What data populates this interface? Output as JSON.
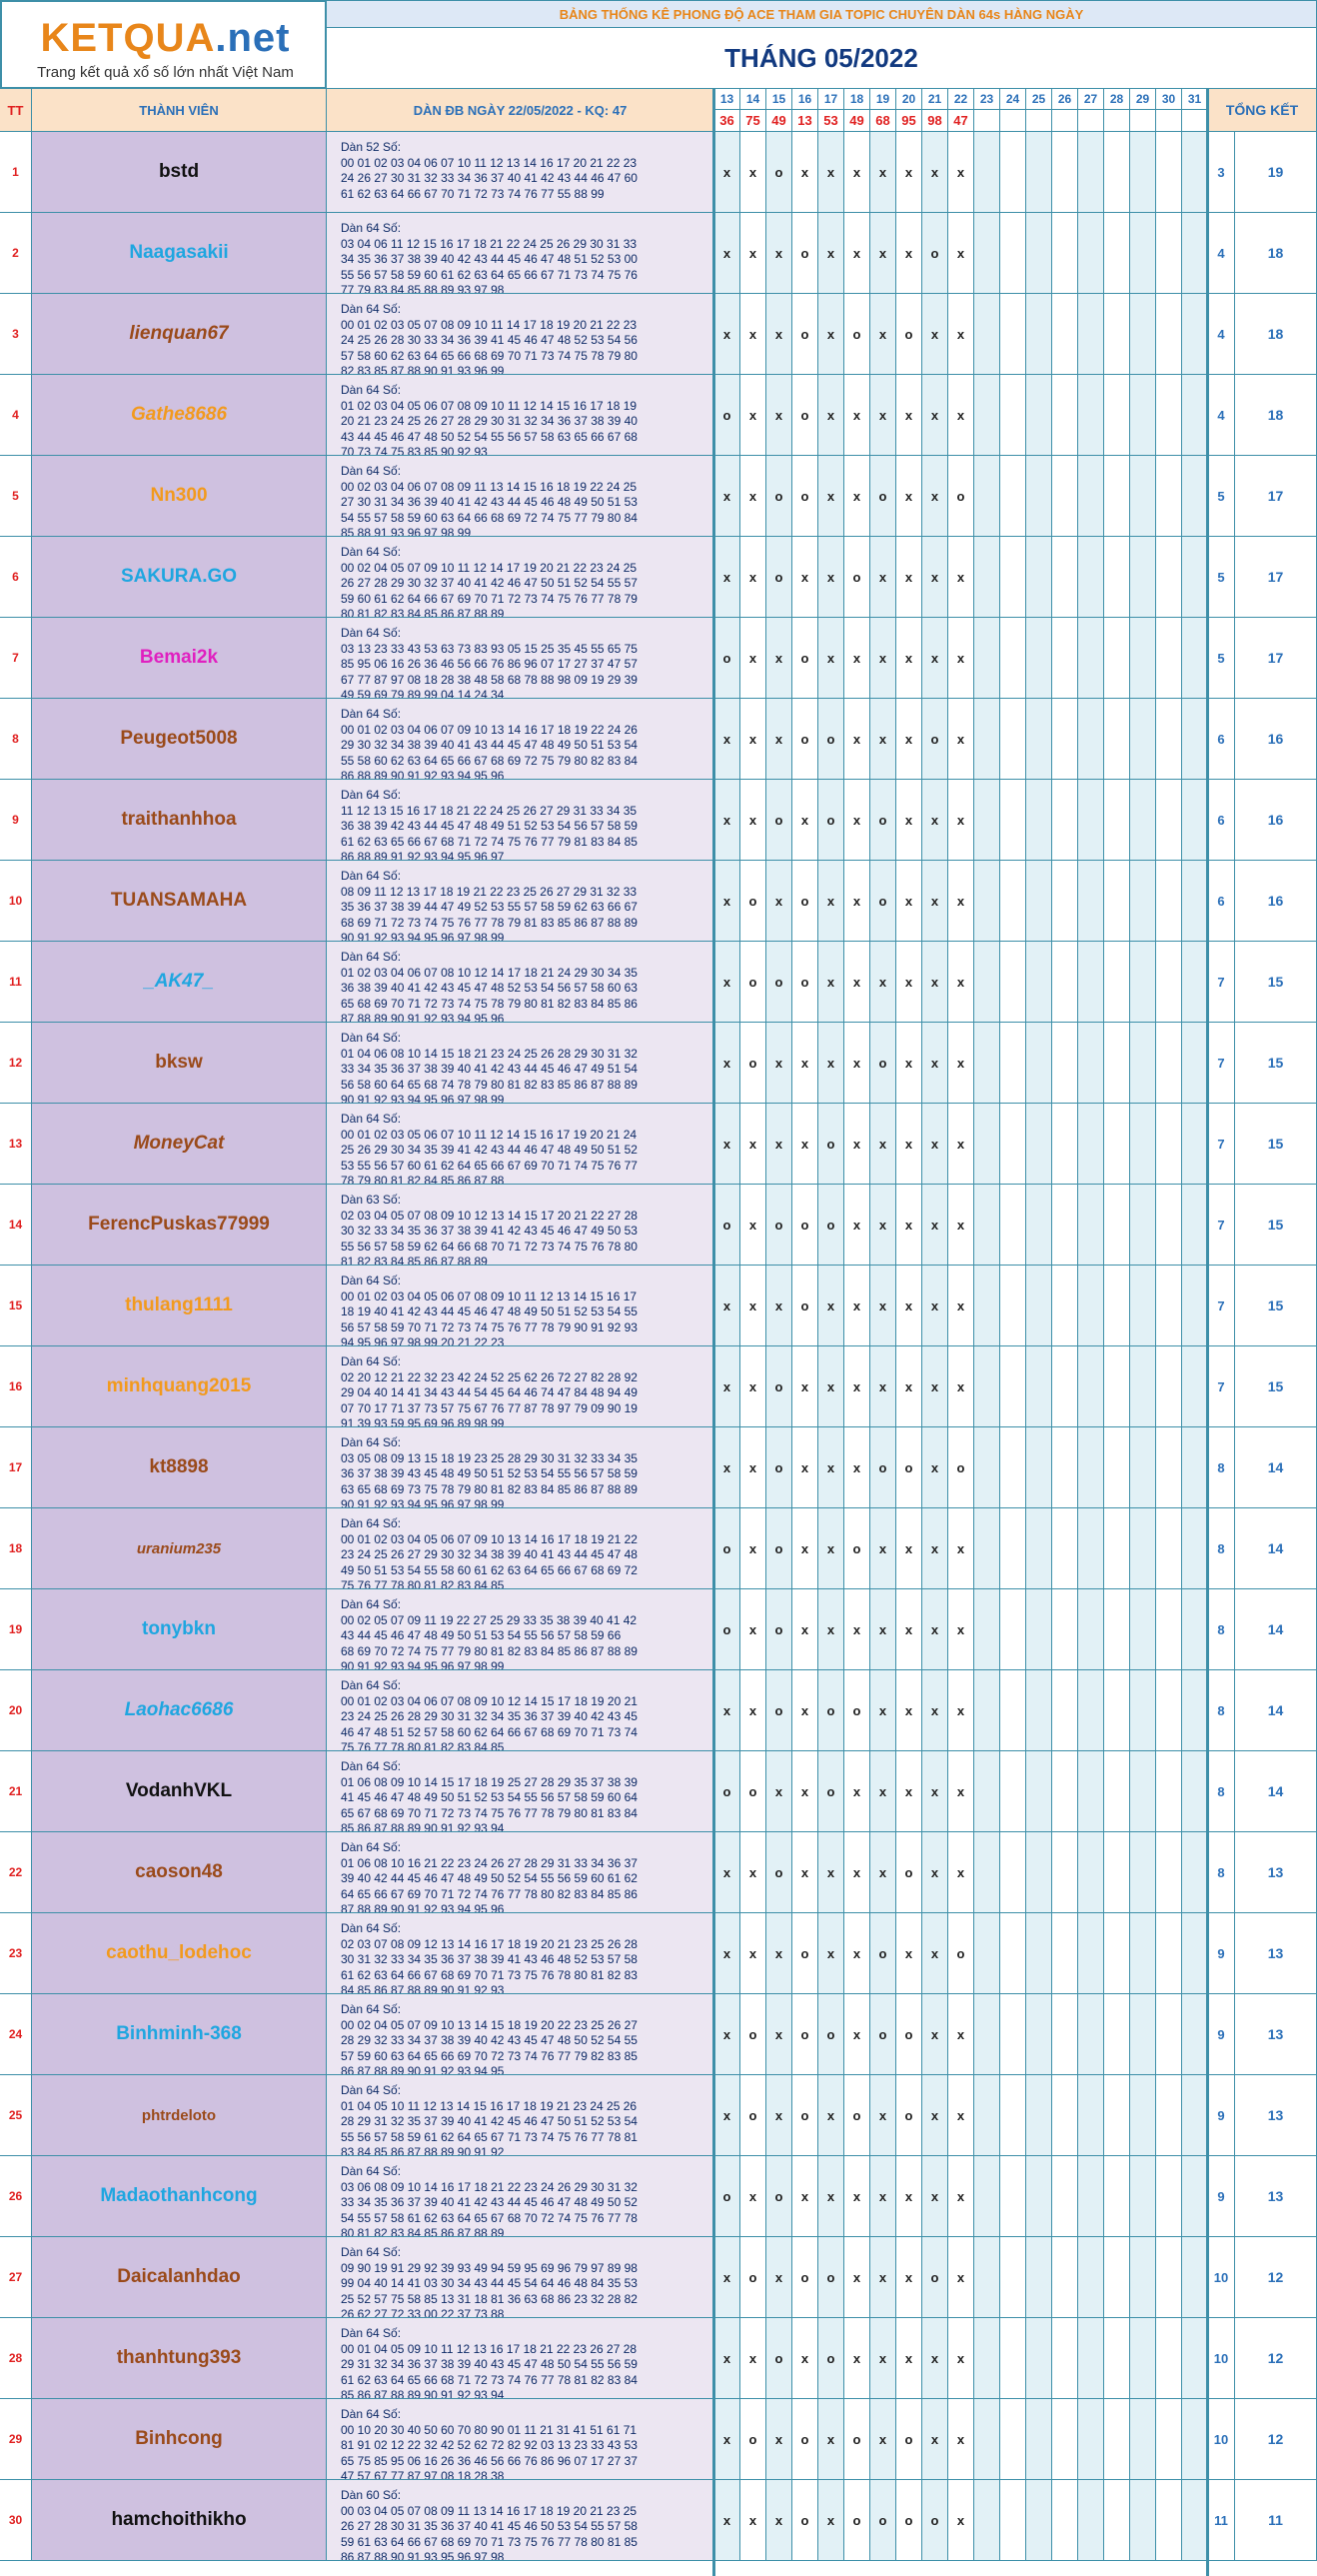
{
  "logo": {
    "brand_main": "KETQUA",
    "brand_suffix": ".net",
    "tagline": "Trang kết quả xổ số lớn nhất Việt Nam"
  },
  "banner": "BẢNG THỐNG KÊ PHONG ĐỘ ACE THAM GIA TOPIC CHUYÊN DÀN 64s HÀNG NGÀY",
  "month_title": "THÁNG 05/2022",
  "headers": {
    "tt": "TT",
    "member": "THÀNH VIÊN",
    "dan": "DÀN ĐB NGÀY 22/05/2022 - KQ: 47",
    "total": "TỔNG KẾT"
  },
  "days": [
    "13",
    "14",
    "15",
    "16",
    "17",
    "18",
    "19",
    "20",
    "21",
    "22",
    "23",
    "24",
    "25",
    "26",
    "27",
    "28",
    "29",
    "30",
    "31"
  ],
  "results": [
    "36",
    "75",
    "49",
    "13",
    "53",
    "49",
    "68",
    "95",
    "98",
    "47",
    "",
    "",
    "",
    "",
    "",
    "",
    "",
    "",
    ""
  ],
  "colors": {
    "header_bg": "#fbe2c8",
    "header_text": "#2a6fb8",
    "result_text": "#e02020",
    "tt_text": "#e02020",
    "name_bg": "#cfc1e0",
    "dan_bg": "#ece6f2",
    "day_bg": "#e2f1f6",
    "day_bg_alt": "#ffffff",
    "grid": "#3d8fa8",
    "total_text": "#2a6fb8",
    "banner_text": "#e8861a",
    "banner_bg": "#dde8f6",
    "title_text": "#123a80"
  },
  "rows": [
    {
      "tt": "1",
      "name": "bstd",
      "color": "#111111",
      "italic": false,
      "small": false,
      "dan": "Dàn 52 Số:\n00 01 02 03 04 06 07 10 11 12 13 14 16 17 20 21 22 23\n24 26 27 30 31 32 33 34 36 37 40 41 42 43 44 46 47 60\n61 62 63 64 66 67 70 71 72 73 74 76 77 55 88 99",
      "marks": [
        "x",
        "x",
        "o",
        "x",
        "x",
        "x",
        "x",
        "x",
        "x",
        "x"
      ],
      "c1": "3",
      "c2": "19"
    },
    {
      "tt": "2",
      "name": "Naagasakii",
      "color": "#1fa6e0",
      "italic": false,
      "small": false,
      "dan": "Dàn 64 Số:\n03 04 06 11 12 15 16 17 18 21 22 24 25 26 29 30 31 33\n34 35 36 37 38 39 40 42 43 44 45 46 47 48 51 52 53 00\n55 56 57 58 59 60 61 62 63 64 65 66 67 71 73 74 75 76\n77 79 83 84 85 88 89 93 97 98",
      "marks": [
        "x",
        "x",
        "x",
        "o",
        "x",
        "x",
        "x",
        "x",
        "o",
        "x"
      ],
      "c1": "4",
      "c2": "18"
    },
    {
      "tt": "3",
      "name": "lienquan67",
      "color": "#9a4a1a",
      "italic": true,
      "small": false,
      "dan": "Dàn 64 Số:\n00 01 02 03 05 07 08 09 10 11 14 17 18 19 20 21 22 23\n24 25 26 28 30 33 34 36 39 41 45 46 47 48 52 53 54 56\n57 58 60 62 63 64 65 66 68 69 70 71 73 74 75 78 79 80\n82 83 85 87 88 90 91 93 96 99",
      "marks": [
        "x",
        "x",
        "x",
        "o",
        "x",
        "o",
        "x",
        "o",
        "x",
        "x"
      ],
      "c1": "4",
      "c2": "18"
    },
    {
      "tt": "4",
      "name": "Gathe8686",
      "color": "#f29a1e",
      "italic": true,
      "small": false,
      "dan": "Dàn 64 Số:\n01 02 03 04 05 06 07 08 09 10 11 12 14 15 16 17 18 19\n20 21 23 24 25 26 27 28 29 30 31 32 34 36 37 38 39 40\n43 44 45 46 47 48 50 52 54 55 56 57 58 63 65 66 67 68\n70 73 74 75 83 85 90 92 93",
      "marks": [
        "o",
        "x",
        "x",
        "o",
        "x",
        "x",
        "x",
        "x",
        "x",
        "x"
      ],
      "c1": "4",
      "c2": "18"
    },
    {
      "tt": "5",
      "name": "Nn300",
      "color": "#f29a1e",
      "italic": false,
      "small": false,
      "dan": "Dàn 64 Số:\n00 02 03 04 06 07 08 09 11 13 14 15 16 18 19 22 24 25\n27 30 31 34 36 39 40 41 42 43 44 45 46 48 49 50 51 53\n54 55 57 58 59 60 63 64 66 68 69 72 74 75 77 79 80 84\n85 88 91 93 96 97 98 99",
      "marks": [
        "x",
        "x",
        "o",
        "o",
        "x",
        "x",
        "o",
        "x",
        "x",
        "o"
      ],
      "c1": "5",
      "c2": "17"
    },
    {
      "tt": "6",
      "name": "SAKURA.GO",
      "color": "#1fa6e0",
      "italic": false,
      "small": false,
      "dan": "Dàn 64 Số:\n00 02 04 05 07 09 10 11 12 14 17 19 20 21 22 23 24 25\n26 27 28 29 30 32 37 40 41 42 46 47 50 51 52 54 55 57\n59 60 61 62 64 66 67 69 70 71 72 73 74 75 76 77 78 79\n80 81 82 83 84 85 86 87 88 89",
      "marks": [
        "x",
        "x",
        "o",
        "x",
        "x",
        "o",
        "x",
        "x",
        "x",
        "x"
      ],
      "c1": "5",
      "c2": "17"
    },
    {
      "tt": "7",
      "name": "Bemai2k",
      "color": "#e020c0",
      "italic": false,
      "small": false,
      "dan": "Dàn 64 Số:\n03 13 23 33 43 53 63 73 83 93 05 15 25 35 45 55 65 75\n85 95 06 16 26 36 46 56 66 76 86 96 07 17 27 37 47 57\n67 77 87 97 08 18 28 38 48 58 68 78 88 98 09 19 29 39\n49 59 69 79 89 99 04 14 24 34",
      "marks": [
        "o",
        "x",
        "x",
        "o",
        "x",
        "x",
        "x",
        "x",
        "x",
        "x"
      ],
      "c1": "5",
      "c2": "17"
    },
    {
      "tt": "8",
      "name": "Peugeot5008",
      "color": "#9a4a1a",
      "italic": false,
      "small": false,
      "dan": "Dàn 64 Số:\n00 01 02 03 04 06 07 09 10 13 14 16 17 18 19 22 24 26\n29 30 32 34 38 39 40 41 43 44 45 47 48 49 50 51 53 54\n55 58 60 62 63 64 65 66 67 68 69 72 75 79 80 82 83 84\n86 88 89 90 91 92 93 94 95 96",
      "marks": [
        "x",
        "x",
        "x",
        "o",
        "o",
        "x",
        "x",
        "x",
        "o",
        "x"
      ],
      "c1": "6",
      "c2": "16"
    },
    {
      "tt": "9",
      "name": "traithanhhoa",
      "color": "#9a4a1a",
      "italic": false,
      "small": false,
      "dan": "Dàn 64 Số:\n11 12 13 15 16 17 18 21 22 24 25 26 27 29 31 33 34 35\n36 38 39 42 43 44 45 47 48 49 51 52 53 54 56 57 58 59\n61 62 63 65 66 67 68 71 72 74 75 76 77 79 81 83 84 85\n86 88 89 91 92 93 94 95 96 97",
      "marks": [
        "x",
        "x",
        "o",
        "x",
        "o",
        "x",
        "o",
        "x",
        "x",
        "x"
      ],
      "c1": "6",
      "c2": "16"
    },
    {
      "tt": "10",
      "name": "TUANSAMAHA",
      "color": "#9a4a1a",
      "italic": false,
      "small": false,
      "dan": "Dàn 64 Số:\n08 09 11 12 13 17 18 19 21 22 23 25 26 27 29 31 32 33\n35 36 37 38 39 44 47 49 52 53 55 57 58 59 62 63 66 67\n68 69 71 72 73 74 75 76 77 78 79 81 83 85 86 87 88 89\n90 91 92 93 94 95 96 97 98 99",
      "marks": [
        "x",
        "o",
        "x",
        "o",
        "x",
        "x",
        "o",
        "x",
        "x",
        "x"
      ],
      "c1": "6",
      "c2": "16"
    },
    {
      "tt": "11",
      "name": "_AK47_",
      "color": "#1fa6e0",
      "italic": true,
      "small": false,
      "dan": "Dàn 64 Số:\n01 02 03 04 06 07 08 10 12 14 17 18 21 24 29 30 34 35\n36 38 39 40 41 42 43 45 47 48 52 53 54 56 57 58 60 63\n65 68 69 70 71 72 73 74 75 78 79 80 81 82 83 84 85 86\n87 88 89 90 91 92 93 94 95 96",
      "marks": [
        "x",
        "o",
        "o",
        "o",
        "x",
        "x",
        "x",
        "x",
        "x",
        "x"
      ],
      "c1": "7",
      "c2": "15"
    },
    {
      "tt": "12",
      "name": "bksw",
      "color": "#9a4a1a",
      "italic": false,
      "small": false,
      "dan": "Dàn 64 Số:\n01 04 06 08 10 14 15 18 21 23 24 25 26 28 29 30 31 32\n33 34 35 36 37 38 39 40 41 42 43 44 45 46 47 49 51 54\n56 58 60 64 65 68 74 78 79 80 81 82 83 85 86 87 88 89\n90 91 92 93 94 95 96 97 98 99",
      "marks": [
        "x",
        "o",
        "x",
        "x",
        "x",
        "x",
        "o",
        "x",
        "x",
        "x"
      ],
      "c1": "7",
      "c2": "15"
    },
    {
      "tt": "13",
      "name": "MoneyCat",
      "color": "#9a4a1a",
      "italic": true,
      "small": false,
      "dan": "Dàn 64 Số:\n00 01 02 03 05 06 07 10 11 12 14 15 16 17 19 20 21 24\n25 26 29 30 34 35 39 41 42 43 44 46 47 48 49 50 51 52\n53 55 56 57 60 61 62 64 65 66 67 69 70 71 74 75 76 77\n78 79 80 81 82 84 85 86 87 88",
      "marks": [
        "x",
        "x",
        "x",
        "x",
        "o",
        "x",
        "x",
        "x",
        "x",
        "x"
      ],
      "c1": "7",
      "c2": "15"
    },
    {
      "tt": "14",
      "name": "FerencPuskas77999",
      "color": "#9a4a1a",
      "italic": false,
      "small": false,
      "dan": "Dàn 63 Số:\n02 03 04 05 07 08 09 10 12 13 14 15 17 20 21 22 27 28\n30 32 33 34 35 36 37 38 39 41 42 43 45 46 47 49 50 53\n55 56 57 58 59 62 64 66 68 70 71 72 73 74 75 76 78 80\n81 82 83 84 85 86 87 88 89",
      "marks": [
        "o",
        "x",
        "o",
        "o",
        "o",
        "x",
        "x",
        "x",
        "x",
        "x"
      ],
      "c1": "7",
      "c2": "15"
    },
    {
      "tt": "15",
      "name": "thulang1111",
      "color": "#f29a1e",
      "italic": false,
      "small": false,
      "dan": "Dàn 64 Số:\n00 01 02 03 04 05 06 07 08 09 10 11 12 13 14 15 16 17\n18 19 40 41 42 43 44 45 46 47 48 49 50 51 52 53 54 55\n56 57 58 59 70 71 72 73 74 75 76 77 78 79 90 91 92 93\n94 95 96 97 98 99 20 21 22 23",
      "marks": [
        "x",
        "x",
        "x",
        "o",
        "x",
        "x",
        "x",
        "x",
        "x",
        "x"
      ],
      "c1": "7",
      "c2": "15"
    },
    {
      "tt": "16",
      "name": "minhquang2015",
      "color": "#f29a1e",
      "italic": false,
      "small": false,
      "dan": "Dàn 64 Số:\n02 20 12 21 22 32 23 42 24 52 25 62 26 72 27 82 28 92\n29 04 40 14 41 34 43 44 54 45 64 46 74 47 84 48 94 49\n07 70 17 71 37 73 57 75 67 76 77 87 78 97 79 09 90 19\n91 39 93 59 95 69 96 89 98 99",
      "marks": [
        "x",
        "x",
        "o",
        "x",
        "x",
        "x",
        "x",
        "x",
        "x",
        "x"
      ],
      "c1": "7",
      "c2": "15"
    },
    {
      "tt": "17",
      "name": "kt8898",
      "color": "#9a4a1a",
      "italic": false,
      "small": false,
      "dan": "Dàn 64 Số:\n03 05 08 09 13 15 18 19 23 25 28 29 30 31 32 33 34 35\n36 37 38 39 43 45 48 49 50 51 52 53 54 55 56 57 58 59\n63 65 68 69 73 75 78 79 80 81 82 83 84 85 86 87 88 89\n90 91 92 93 94 95 96 97 98 99",
      "marks": [
        "x",
        "x",
        "o",
        "x",
        "x",
        "x",
        "o",
        "o",
        "x",
        "o"
      ],
      "c1": "8",
      "c2": "14"
    },
    {
      "tt": "18",
      "name": "uranium235",
      "color": "#9a4a1a",
      "italic": true,
      "small": true,
      "dan": "Dàn 64 Số:\n00 01 02 03 04 05 06 07 09 10 13 14 16 17 18 19 21 22\n23 24 25 26 27 29 30 32 34 38 39 40 41 43 44 45 47 48\n49 50 51 53 54 55 58 60 61 62 63 64 65 66 67 68 69 72\n75 76 77 78 80 81 82 83 84 85",
      "marks": [
        "o",
        "x",
        "o",
        "x",
        "x",
        "o",
        "x",
        "x",
        "x",
        "x"
      ],
      "c1": "8",
      "c2": "14"
    },
    {
      "tt": "19",
      "name": "tonybkn",
      "color": "#1fa6e0",
      "italic": false,
      "small": false,
      "dan": "Dàn 64 Số:\n00 02 05 07 09 11 19 22 27 25 29 33 35 38 39 40 41 42\n43 44 45 46 47 48 49 50 51 53 54 55 56 57 58 59 66\n68 69 70 72 74 75 77 79 80 81 82 83 84 85 86 87 88 89\n90 91 92 93 94 95 96 97 98 99",
      "marks": [
        "o",
        "x",
        "o",
        "x",
        "x",
        "x",
        "x",
        "x",
        "x",
        "x"
      ],
      "c1": "8",
      "c2": "14"
    },
    {
      "tt": "20",
      "name": "Laohac6686",
      "color": "#1fa6e0",
      "italic": true,
      "small": false,
      "dan": "Dàn 64 Số:\n00 01 02 03 04 06 07 08 09 10 12 14 15 17 18 19 20 21\n23 24 25 26 28 29 30 31 32 34 35 36 37 39 40 42 43 45\n46 47 48 51 52 57 58 60 62 64 66 67 68 69 70 71 73 74\n75 76 77 78 80 81 82 83 84 85",
      "marks": [
        "x",
        "x",
        "o",
        "x",
        "o",
        "o",
        "x",
        "x",
        "x",
        "x"
      ],
      "c1": "8",
      "c2": "14"
    },
    {
      "tt": "21",
      "name": "VodanhVKL",
      "color": "#111111",
      "italic": false,
      "small": false,
      "dan": "Dàn 64 Số:\n01 06 08 09 10 14 15 17 18 19 25 27 28 29 35 37 38 39\n41 45 46 47 48 49 50 51 52 53 54 55 56 57 58 59 60 64\n65 67 68 69 70 71 72 73 74 75 76 77 78 79 80 81 83 84\n85 86 87 88 89 90 91 92 93 94",
      "marks": [
        "o",
        "o",
        "x",
        "x",
        "o",
        "x",
        "x",
        "x",
        "x",
        "x"
      ],
      "c1": "8",
      "c2": "14"
    },
    {
      "tt": "22",
      "name": "caoson48",
      "color": "#9a4a1a",
      "italic": false,
      "small": false,
      "dan": "Dàn 64 Số:\n01 06 08 10 16 21 22 23 24 26 27 28 29 31 33 34 36 37\n39 40 42 44 45 46 47 48 49 50 52 54 55 56 59 60 61 62\n64 65 66 67 69 70 71 72 74 76 77 78 80 82 83 84 85 86\n87 88 89 90 91 92 93 94 95 96",
      "marks": [
        "x",
        "x",
        "o",
        "x",
        "x",
        "x",
        "x",
        "o",
        "x",
        "x"
      ],
      "c1": "8",
      "c2": "13"
    },
    {
      "tt": "23",
      "name": "caothu_lodehoc",
      "color": "#f29a1e",
      "italic": false,
      "small": false,
      "dan": "Dàn 64 Số:\n02 03 07 08 09 12 13 14 16 17 18 19 20 21 23 25 26 28\n30 31 32 33 34 35 36 37 38 39 41 43 46 48 52 53 57 58\n61 62 63 64 66 67 68 69 70 71 73 75 76 78 80 81 82 83\n84 85 86 87 88 89 90 91 92 93",
      "marks": [
        "x",
        "x",
        "x",
        "o",
        "x",
        "x",
        "o",
        "x",
        "x",
        "o"
      ],
      "c1": "9",
      "c2": "13"
    },
    {
      "tt": "24",
      "name": "Binhminh-368",
      "color": "#1fa6e0",
      "italic": false,
      "small": false,
      "dan": "Dàn 64 Số:\n00 02 04 05 07 09 10 13 14 15 18 19 20 22 23 25 26 27\n28 29 32 33 34 37 38 39 40 42 43 45 47 48 50 52 54 55\n57 59 60 63 64 65 66 69 70 72 73 74 76 77 79 82 83 85\n86 87 88 89 90 91 92 93 94 95",
      "marks": [
        "x",
        "o",
        "x",
        "o",
        "o",
        "x",
        "o",
        "o",
        "x",
        "x"
      ],
      "c1": "9",
      "c2": "13"
    },
    {
      "tt": "25",
      "name": "phtrdeloto",
      "color": "#9a4a1a",
      "italic": false,
      "small": true,
      "dan": "Dàn 64 Số:\n01 04 05 10 11 12 13 14 15 16 17 18 19 21 23 24 25 26\n28 29 31 32 35 37 39 40 41 42 45 46 47 50 51 52 53 54\n55 56 57 58 59 61 62 64 65 67 71 73 74 75 76 77 78 81\n83 84 85 86 87 88 89 90 91 92",
      "marks": [
        "x",
        "o",
        "x",
        "o",
        "x",
        "o",
        "x",
        "o",
        "x",
        "x"
      ],
      "c1": "9",
      "c2": "13"
    },
    {
      "tt": "26",
      "name": "Madaothanhcong",
      "color": "#1fa6e0",
      "italic": false,
      "small": false,
      "dan": "Dàn 64 Số:\n03 06 08 09 10 14 16 17 18 21 22 23 24 26 29 30 31 32\n33 34 35 36 37 39 40 41 42 43 44 45 46 47 48 49 50 52\n54 55 57 58 61 62 63 64 65 67 68 70 72 74 75 76 77 78\n80 81 82 83 84 85 86 87 88 89",
      "marks": [
        "o",
        "x",
        "o",
        "x",
        "x",
        "x",
        "x",
        "x",
        "x",
        "x"
      ],
      "c1": "9",
      "c2": "13"
    },
    {
      "tt": "27",
      "name": "Daicalanhdao",
      "color": "#9a4a1a",
      "italic": false,
      "small": false,
      "dan": "Dàn 64 Số:\n09 90 19 91 29 92 39 93 49 94 59 95 69 96 79 97 89 98\n99 04 40 14 41 03 30 34 43 44 45 54 64 46 48 84 35 53\n25 52 57 75 58 85 13 31 18 81 36 63 68 86 23 32 28 82\n26 62 27 72 33 00 22 37 73 88",
      "marks": [
        "x",
        "o",
        "x",
        "o",
        "o",
        "x",
        "x",
        "x",
        "o",
        "x"
      ],
      "c1": "10",
      "c2": "12"
    },
    {
      "tt": "28",
      "name": "thanhtung393",
      "color": "#9a4a1a",
      "italic": false,
      "small": false,
      "dan": "Dàn 64 Số:\n00 01 04 05 09 10 11 12 13 16 17 18 21 22 23 26 27 28\n29 31 32 34 36 37 38 39 40 43 45 47 48 50 54 55 56 59\n61 62 63 64 65 66 68 71 72 73 74 76 77 78 81 82 83 84\n85 86 87 88 89 90 91 92 93 94",
      "marks": [
        "x",
        "x",
        "o",
        "x",
        "o",
        "x",
        "x",
        "x",
        "x",
        "x"
      ],
      "c1": "10",
      "c2": "12"
    },
    {
      "tt": "29",
      "name": "Binhcong",
      "color": "#9a4a1a",
      "italic": false,
      "small": false,
      "dan": "Dàn 64 Số:\n00 10 20 30 40 50 60 70 80 90 01 11 21 31 41 51 61 71\n81 91 02 12 22 32 42 52 62 72 82 92 03 13 23 33 43 53\n65 75 85 95 06 16 26 36 46 56 66 76 86 96 07 17 27 37\n47 57 67 77 87 97 08 18 28 38",
      "marks": [
        "x",
        "o",
        "x",
        "o",
        "x",
        "o",
        "x",
        "o",
        "x",
        "x"
      ],
      "c1": "10",
      "c2": "12"
    },
    {
      "tt": "30",
      "name": "hamchoithikho",
      "color": "#111111",
      "italic": false,
      "small": false,
      "dan": "Dàn 60 Số:\n00 03 04 05 07 08 09 11 13 14 16 17 18 19 20 21 23 25\n26 27 28 30 31 35 36 37 40 41 45 46 50 53 54 55 57 58\n59 61 63 64 66 67 68 69 70 71 73 75 76 77 78 80 81 85\n86 87 88 90 91 93 95 96 97 98",
      "marks": [
        "x",
        "x",
        "x",
        "o",
        "x",
        "o",
        "o",
        "o",
        "o",
        "x"
      ],
      "c1": "11",
      "c2": "11"
    }
  ]
}
